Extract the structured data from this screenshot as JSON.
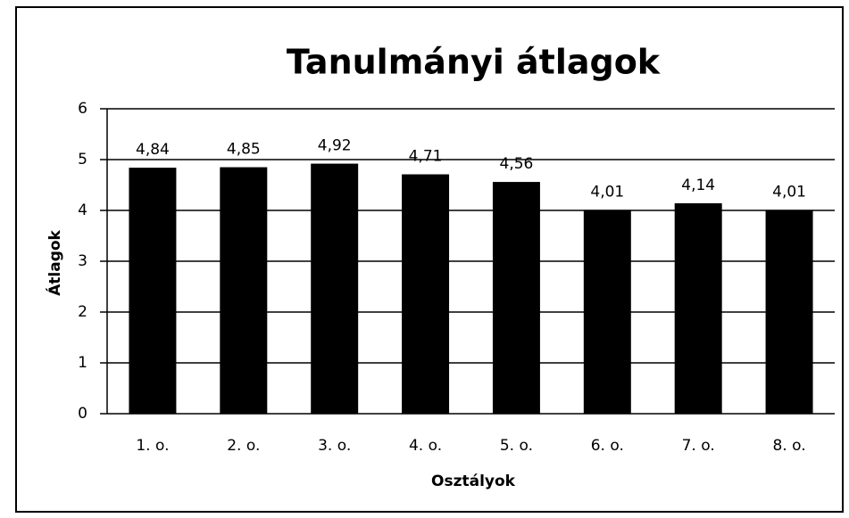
{
  "chart_data": {
    "type": "bar",
    "title": "Tanulmányi átlagok",
    "x_label": "Osztályok",
    "y_label": "Átlagok",
    "categories": [
      "1. o.",
      "2. o.",
      "3. o.",
      "4. o.",
      "5. o.",
      "6. o.",
      "7. o.",
      "8. o."
    ],
    "values": [
      4.84,
      4.85,
      4.92,
      4.71,
      4.56,
      4.01,
      4.14,
      4.01
    ],
    "value_labels": [
      "4,84",
      "4,85",
      "4,92",
      "4,71",
      "4,56",
      "4,01",
      "4,14",
      "4,01"
    ],
    "color": "#000000",
    "ylim": [
      0,
      6
    ],
    "yticks": [
      0,
      1,
      2,
      3,
      4,
      5,
      6
    ],
    "grid": true
  }
}
